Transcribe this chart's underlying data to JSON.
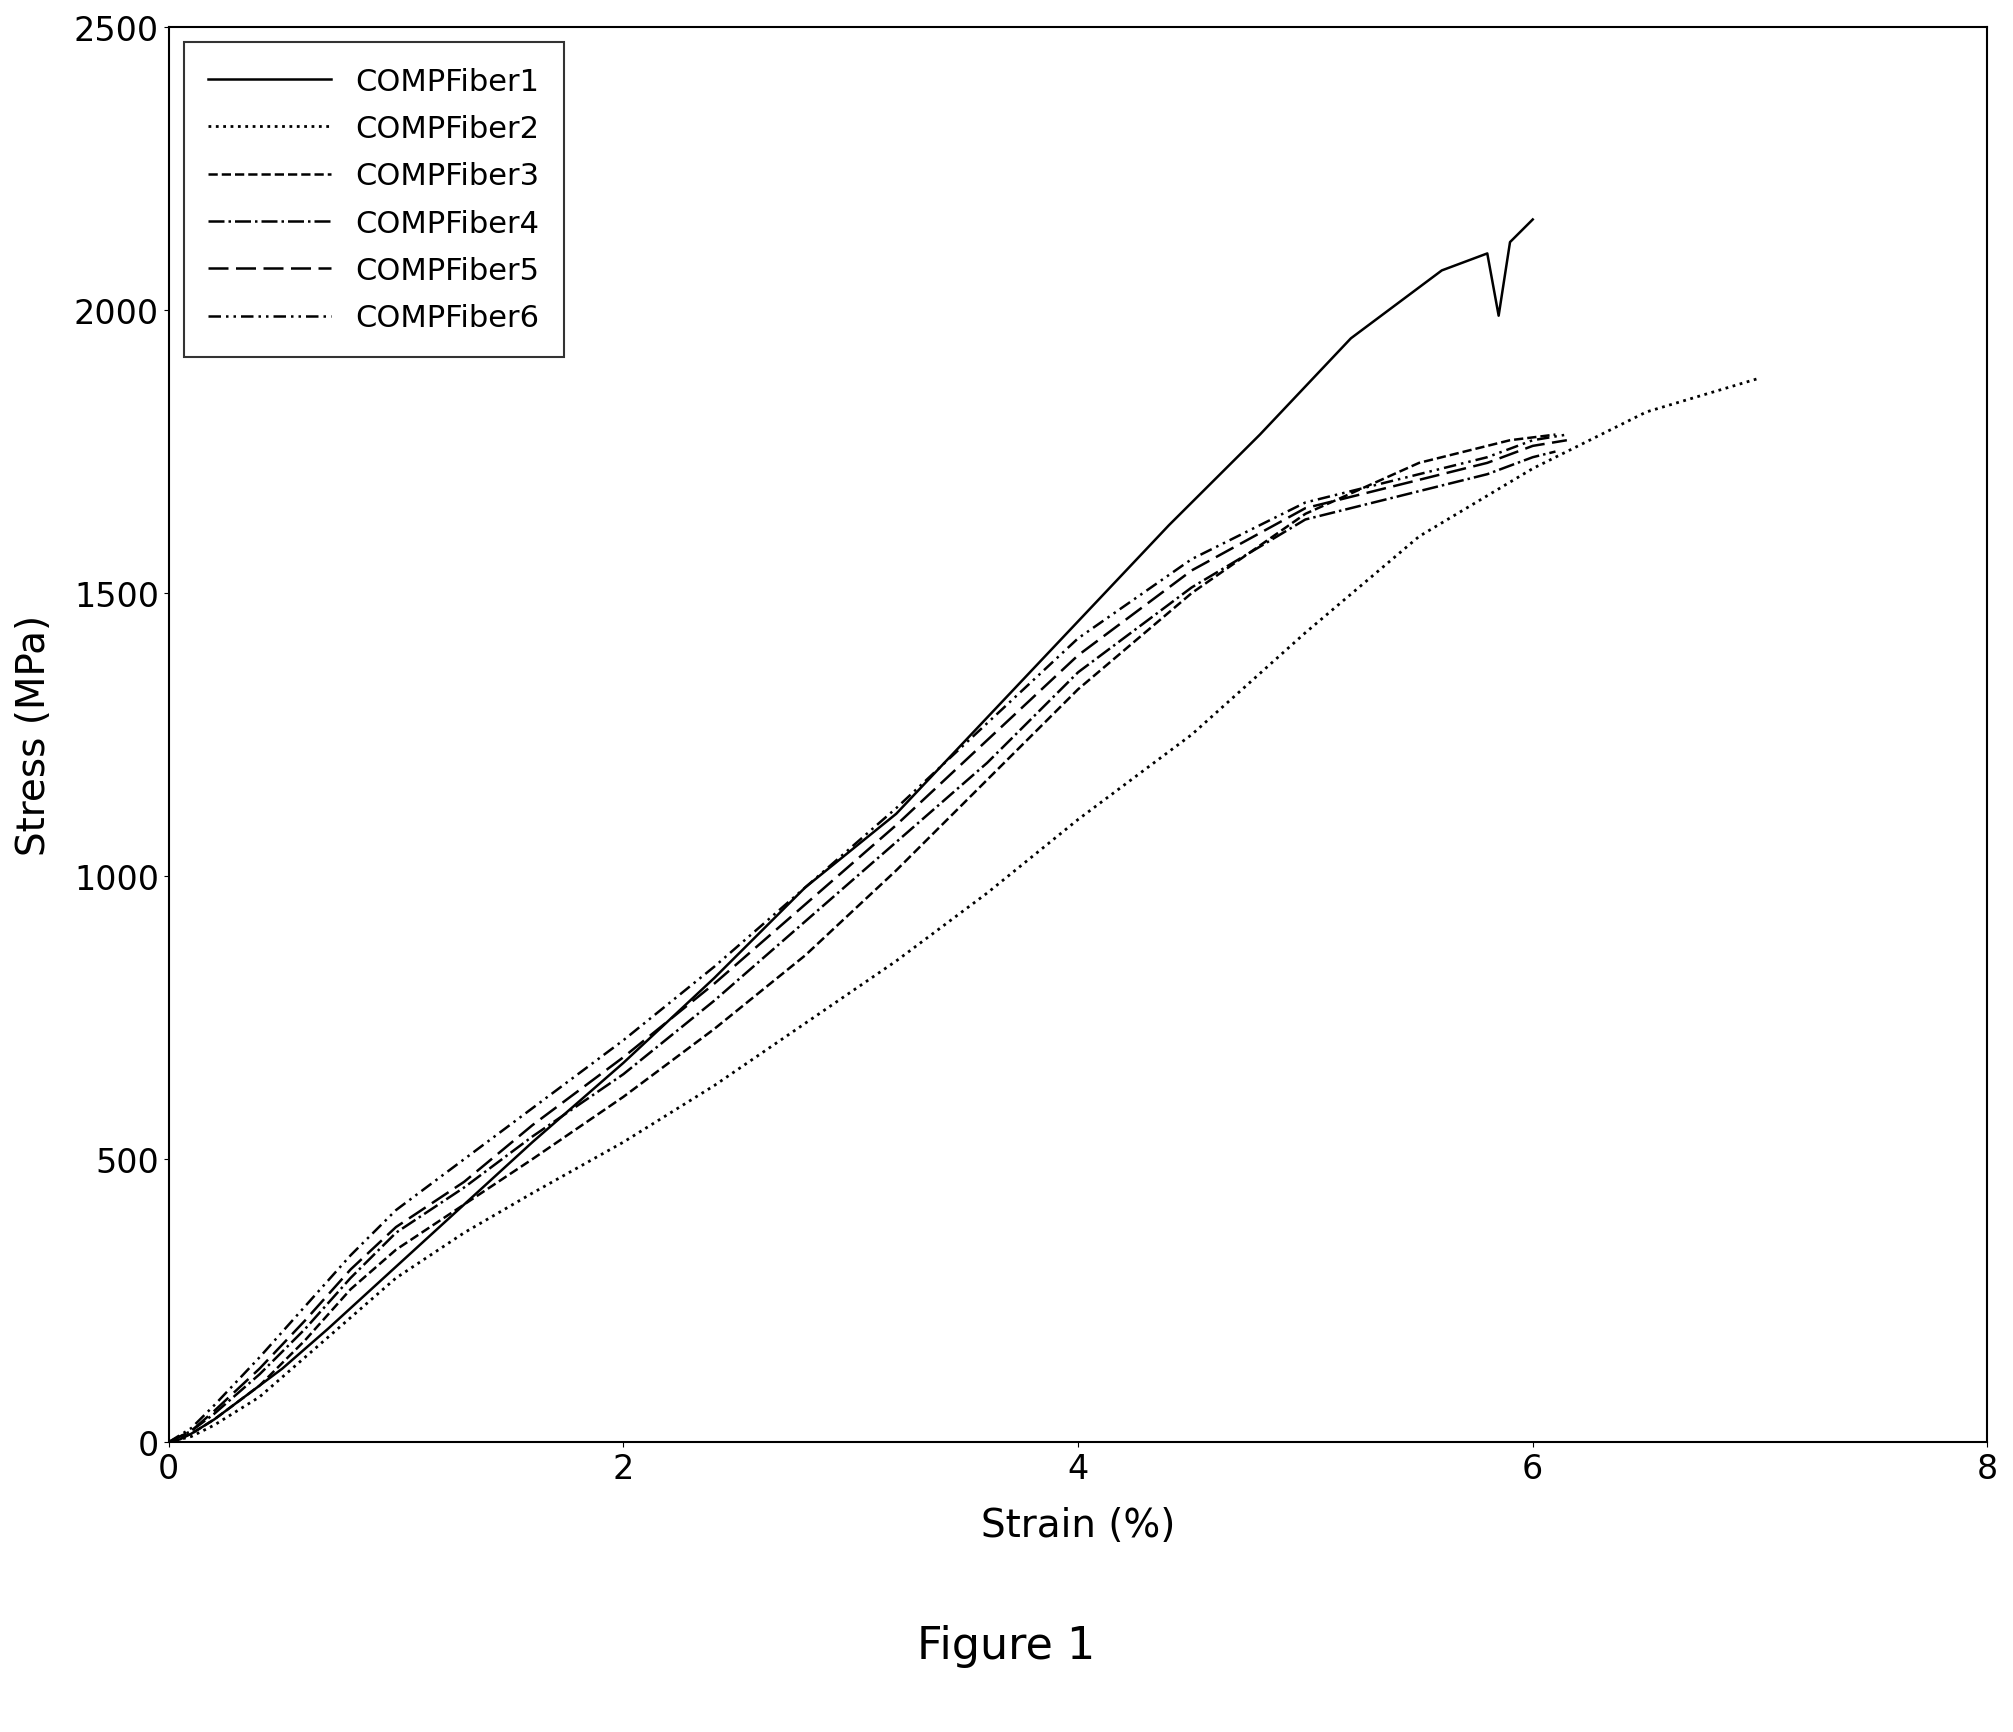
{
  "title": "Figure 1",
  "xlabel": "Strain (%)",
  "ylabel": "Stress (MPa)",
  "xlim": [
    0,
    8
  ],
  "ylim": [
    0,
    2500
  ],
  "xticks": [
    0,
    2,
    4,
    6,
    8
  ],
  "yticks": [
    0,
    500,
    1000,
    1500,
    2000,
    2500
  ],
  "series": [
    {
      "label": "COMPFiber1",
      "linestyle": "solid",
      "color": "#000000",
      "linewidth": 1.8,
      "x": [
        0,
        0.05,
        0.1,
        0.2,
        0.3,
        0.5,
        0.7,
        1.0,
        1.3,
        1.6,
        2.0,
        2.4,
        2.8,
        3.2,
        3.6,
        4.0,
        4.4,
        4.8,
        5.2,
        5.6,
        5.8,
        5.85,
        5.9,
        6.0
      ],
      "y": [
        0,
        5,
        15,
        40,
        70,
        130,
        200,
        310,
        420,
        530,
        670,
        820,
        980,
        1110,
        1280,
        1450,
        1620,
        1780,
        1950,
        2070,
        2100,
        1990,
        2120,
        2160
      ]
    },
    {
      "label": "COMPFiber2",
      "linestyle": "dotted",
      "color": "#000000",
      "linewidth": 2.0,
      "x": [
        0,
        0.1,
        0.2,
        0.4,
        0.6,
        0.8,
        1.0,
        1.3,
        1.6,
        2.0,
        2.4,
        2.8,
        3.2,
        3.6,
        4.0,
        4.5,
        5.0,
        5.5,
        6.0,
        6.5,
        7.0
      ],
      "y": [
        0,
        10,
        30,
        80,
        150,
        220,
        290,
        370,
        440,
        530,
        630,
        740,
        850,
        970,
        1100,
        1250,
        1430,
        1600,
        1720,
        1820,
        1880
      ]
    },
    {
      "label": "COMPFiber3",
      "linestyle": "dashed",
      "color": "#000000",
      "linewidth": 1.8,
      "x": [
        0,
        0.1,
        0.2,
        0.4,
        0.6,
        0.8,
        1.0,
        1.3,
        1.6,
        2.0,
        2.4,
        2.8,
        3.2,
        3.6,
        4.0,
        4.5,
        5.0,
        5.5,
        5.9,
        6.1
      ],
      "y": [
        0,
        15,
        40,
        100,
        180,
        270,
        340,
        420,
        500,
        610,
        730,
        860,
        1010,
        1170,
        1330,
        1500,
        1640,
        1730,
        1770,
        1780
      ]
    },
    {
      "label": "COMPFiber4",
      "linestyle": "dashdot",
      "color": "#000000",
      "linewidth": 1.8,
      "x": [
        0,
        0.1,
        0.2,
        0.4,
        0.6,
        0.8,
        1.0,
        1.3,
        1.6,
        2.0,
        2.4,
        2.8,
        3.2,
        3.6,
        4.0,
        4.5,
        5.0,
        5.5,
        5.8,
        6.0,
        6.1
      ],
      "y": [
        0,
        20,
        50,
        120,
        200,
        290,
        370,
        450,
        540,
        650,
        780,
        920,
        1060,
        1200,
        1360,
        1510,
        1630,
        1680,
        1710,
        1740,
        1750
      ]
    },
    {
      "label": "COMPFiber5",
      "linestyle": "long_dashed",
      "color": "#000000",
      "linewidth": 1.8,
      "x": [
        0,
        0.1,
        0.2,
        0.4,
        0.6,
        0.8,
        1.0,
        1.3,
        1.6,
        2.0,
        2.4,
        2.8,
        3.2,
        3.6,
        4.0,
        4.5,
        5.0,
        5.5,
        5.8,
        6.0,
        6.15
      ],
      "y": [
        0,
        20,
        55,
        130,
        215,
        305,
        380,
        460,
        560,
        680,
        810,
        950,
        1090,
        1240,
        1390,
        1540,
        1650,
        1700,
        1730,
        1760,
        1770
      ]
    },
    {
      "label": "COMPFiber6",
      "linestyle": "dashdotdot",
      "color": "#000000",
      "linewidth": 1.8,
      "x": [
        0,
        0.1,
        0.2,
        0.4,
        0.6,
        0.8,
        1.0,
        1.3,
        1.6,
        2.0,
        2.4,
        2.8,
        3.2,
        3.6,
        4.0,
        4.5,
        5.0,
        5.5,
        5.8,
        6.0,
        6.15
      ],
      "y": [
        0,
        25,
        65,
        150,
        240,
        330,
        410,
        500,
        590,
        710,
        840,
        980,
        1120,
        1270,
        1420,
        1560,
        1660,
        1710,
        1740,
        1770,
        1780
      ]
    }
  ],
  "legend_fontsize": 22,
  "axis_label_fontsize": 28,
  "tick_fontsize": 24,
  "title_fontsize": 32,
  "figure_title": "Figure 1",
  "background_color": "#ffffff"
}
